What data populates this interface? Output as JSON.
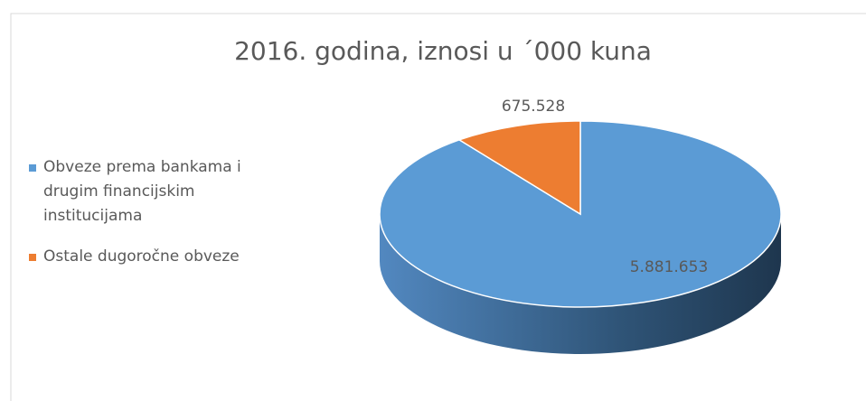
{
  "chart_data": {
    "type": "pie",
    "title": "2016. godina, iznosi u ´000 kuna",
    "categories": [
      "Obveze prema bankama i drugim financijskim institucijama",
      "Ostale dugoročne obveze"
    ],
    "values": [
      5881653,
      675528
    ],
    "value_labels": [
      "5.881.653",
      "675.528"
    ],
    "colors": [
      "#5b9bd5",
      "#ed7d31"
    ],
    "legend": "left"
  }
}
